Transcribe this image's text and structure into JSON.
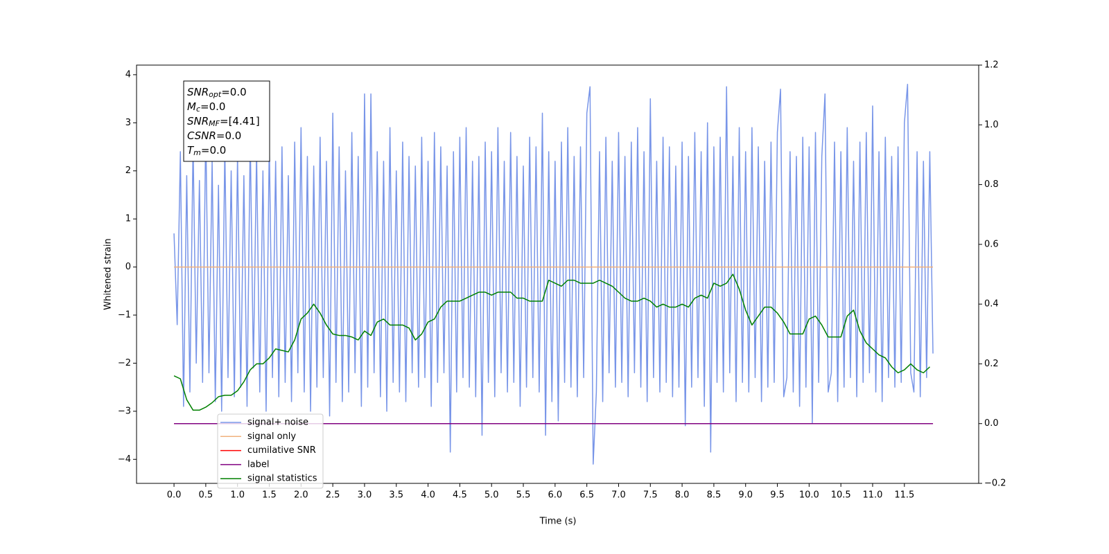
{
  "chart_data": {
    "type": "line",
    "xlabel": "Time (s)",
    "ylabel": "Whitened strain",
    "xlim": [
      -0.59,
      12.67
    ],
    "ylim": [
      -4.5,
      4.2
    ],
    "y2lim": [
      -0.2,
      1.2
    ],
    "xticks": [
      {
        "value": 0,
        "label": "0.0"
      },
      0.5,
      {
        "value": 1,
        "label": "1.0"
      },
      1.5,
      {
        "value": 2,
        "label": "2.0"
      },
      2.5,
      {
        "value": 3,
        "label": "3.0"
      },
      3.5,
      {
        "value": 4,
        "label": "4.0"
      },
      4.5,
      {
        "value": 5,
        "label": "5.0"
      },
      5.5,
      {
        "value": 6,
        "label": "6.0"
      },
      6.5,
      {
        "value": 7,
        "label": "7.0"
      },
      7.5,
      {
        "value": 8,
        "label": "8.0"
      },
      8.5,
      {
        "value": 9,
        "label": "9.0"
      },
      9.5,
      {
        "value": 10,
        "label": "10.0"
      },
      10.5,
      {
        "value": 11,
        "label": "11.0"
      },
      11.5
    ],
    "yticks": [
      {
        "value": -4,
        "label": "−4"
      },
      {
        "value": -3,
        "label": "−3"
      },
      {
        "value": -2,
        "label": "−2"
      },
      {
        "value": -1,
        "label": "−1"
      },
      0,
      1,
      2,
      3,
      4
    ],
    "y2ticks": [
      {
        "value": -0.2,
        "label": "−0.2"
      },
      {
        "value": 0,
        "label": "0.0"
      },
      0.2,
      0.4,
      0.6,
      0.8,
      {
        "value": 1,
        "label": "1.0"
      },
      1.2
    ],
    "annotations": [
      {
        "text": "SNR",
        "sub": "opt",
        "rest": "=0.0"
      },
      {
        "text": "M",
        "sub": "c",
        "rest": "=0.0"
      },
      {
        "text": "SNR",
        "sub": "MF",
        "rest": "=[4.41]"
      },
      {
        "text": "CSNR",
        "rest": "=0.0"
      },
      {
        "text": "T",
        "sub": "m",
        "rest": "=0.0"
      }
    ],
    "series": [
      {
        "name": "signal+ noise",
        "color": "#7895e8",
        "axis": "y",
        "x": [
          0,
          0.05,
          0.1,
          0.15,
          0.2,
          0.25,
          0.3,
          0.35,
          0.4,
          0.45,
          0.5,
          0.55,
          0.6,
          0.65,
          0.7,
          0.75,
          0.8,
          0.85,
          0.9,
          0.95,
          1,
          1.05,
          1.1,
          1.15,
          1.2,
          1.25,
          1.3,
          1.35,
          1.4,
          1.45,
          1.5,
          1.55,
          1.6,
          1.65,
          1.7,
          1.75,
          1.8,
          1.85,
          1.9,
          1.95,
          2,
          2.05,
          2.1,
          2.15,
          2.2,
          2.25,
          2.3,
          2.35,
          2.4,
          2.45,
          2.5,
          2.55,
          2.6,
          2.65,
          2.7,
          2.75,
          2.8,
          2.85,
          2.9,
          2.95,
          3,
          3.05,
          3.1,
          3.15,
          3.2,
          3.25,
          3.3,
          3.35,
          3.4,
          3.45,
          3.5,
          3.55,
          3.6,
          3.65,
          3.7,
          3.75,
          3.8,
          3.85,
          3.9,
          3.95,
          4,
          4.05,
          4.1,
          4.15,
          4.2,
          4.25,
          4.3,
          4.35,
          4.4,
          4.45,
          4.5,
          4.55,
          4.6,
          4.65,
          4.7,
          4.75,
          4.8,
          4.85,
          4.9,
          4.95,
          5,
          5.05,
          5.1,
          5.15,
          5.2,
          5.25,
          5.3,
          5.35,
          5.4,
          5.45,
          5.5,
          5.55,
          5.6,
          5.65,
          5.7,
          5.75,
          5.8,
          5.85,
          5.9,
          5.95,
          6,
          6.05,
          6.1,
          6.15,
          6.2,
          6.25,
          6.3,
          6.35,
          6.4,
          6.45,
          6.5,
          6.55,
          6.6,
          6.65,
          6.7,
          6.75,
          6.8,
          6.85,
          6.9,
          6.95,
          7,
          7.05,
          7.1,
          7.15,
          7.2,
          7.25,
          7.3,
          7.35,
          7.4,
          7.45,
          7.5,
          7.55,
          7.6,
          7.65,
          7.7,
          7.75,
          7.8,
          7.85,
          7.9,
          7.95,
          8,
          8.05,
          8.1,
          8.15,
          8.2,
          8.25,
          8.3,
          8.35,
          8.4,
          8.45,
          8.5,
          8.55,
          8.6,
          8.65,
          8.7,
          8.75,
          8.8,
          8.85,
          8.9,
          8.95,
          9,
          9.05,
          9.1,
          9.15,
          9.2,
          9.25,
          9.3,
          9.35,
          9.4,
          9.45,
          9.5,
          9.55,
          9.6,
          9.65,
          9.7,
          9.75,
          9.8,
          9.85,
          9.9,
          9.95,
          10,
          10.05,
          10.1,
          10.15,
          10.2,
          10.25,
          10.3,
          10.35,
          10.4,
          10.45,
          10.5,
          10.55,
          10.6,
          10.65,
          10.7,
          10.75,
          10.8,
          10.85,
          10.9,
          10.95,
          11,
          11.05,
          11.1,
          11.15,
          11.2,
          11.25,
          11.3,
          11.35,
          11.4,
          11.45,
          11.5,
          11.55,
          11.6,
          11.65,
          11.7,
          11.75,
          11.8,
          11.85,
          11.9,
          11.95
        ],
        "values": [
          0.7,
          -1.2,
          2.4,
          -2.9,
          1.9,
          -2.6,
          2.6,
          -2.0,
          1.8,
          -2.4,
          2.9,
          -2.2,
          2.2,
          -2.8,
          1.7,
          -3.0,
          2.5,
          -2.3,
          2.0,
          -2.7,
          2.3,
          -2.5,
          1.9,
          -2.9,
          2.7,
          -2.1,
          2.4,
          -2.6,
          2.0,
          -3.0,
          2.6,
          -2.3,
          2.2,
          -2.7,
          2.5,
          -2.4,
          1.9,
          -2.8,
          2.6,
          -2.2,
          2.9,
          -2.6,
          2.3,
          -3.0,
          2.1,
          -2.5,
          2.7,
          -2.3,
          2.2,
          -3.1,
          3.2,
          -2.4,
          2.5,
          -2.8,
          2.0,
          -2.6,
          2.8,
          -2.2,
          2.3,
          -2.9,
          3.6,
          -2.5,
          3.6,
          -2.2,
          2.4,
          -2.7,
          2.2,
          -3.0,
          2.9,
          -2.4,
          2.0,
          -2.6,
          2.6,
          -2.8,
          2.3,
          -2.2,
          2.1,
          -2.5,
          2.7,
          -2.3,
          2.2,
          -2.9,
          2.8,
          -2.4,
          2.5,
          -2.2,
          2.1,
          -3.85,
          2.4,
          -2.6,
          2.7,
          -2.3,
          2.9,
          -2.5,
          2.2,
          -2.7,
          2.3,
          -3.5,
          2.6,
          -2.4,
          2.4,
          -2.7,
          2.9,
          -2.2,
          2.2,
          -2.6,
          2.8,
          -2.4,
          2.3,
          -2.9,
          2.1,
          -2.5,
          2.7,
          -2.3,
          2.5,
          -2.6,
          3.2,
          -3.5,
          2.4,
          -2.8,
          2.2,
          -3.2,
          2.6,
          -2.4,
          2.9,
          -2.5,
          2.3,
          -2.7,
          2.5,
          -2.3,
          3.2,
          3.75,
          -4.1,
          -2.6,
          2.4,
          -2.8,
          2.7,
          -2.2,
          2.2,
          -2.5,
          2.8,
          -2.4,
          2.3,
          -2.7,
          2.6,
          -2.2,
          2.9,
          -2.5,
          2.4,
          -2.8,
          3.5,
          -2.3,
          2.2,
          -2.6,
          2.7,
          -2.4,
          2.5,
          -2.7,
          2.1,
          -2.5,
          2.6,
          -3.3,
          2.3,
          -2.5,
          2.8,
          -2.3,
          2.4,
          -2.9,
          3.0,
          -3.85,
          2.5,
          -2.4,
          2.7,
          -2.6,
          3.75,
          -2.2,
          2.3,
          -2.8,
          2.9,
          -2.4,
          2.4,
          -2.6,
          2.9,
          -2.3,
          2.5,
          -2.8,
          2.2,
          -2.5,
          2.6,
          -2.4,
          2.8,
          3.7,
          -2.7,
          -2.3,
          2.4,
          -2.6,
          2.3,
          -2.9,
          2.7,
          -2.5,
          2.5,
          -3.25,
          2.8,
          -2.4,
          2.3,
          3.6,
          -2.6,
          -2.2,
          2.6,
          -2.8,
          2.4,
          -2.5,
          2.9,
          -2.3,
          2.2,
          -2.7,
          2.6,
          -2.4,
          2.8,
          -2.2,
          3.35,
          -2.6,
          2.4,
          -2.8,
          2.7,
          -2.3,
          2.3,
          -2.5,
          2.5,
          -2.4,
          3.0,
          3.8,
          -2.2,
          -2.6,
          2.4,
          -2.7,
          2.2,
          -2.3,
          2.4,
          -1.8
        ]
      },
      {
        "name": "signal only",
        "color": "#f0b07c",
        "axis": "y",
        "x": [
          0,
          11.95
        ],
        "values": [
          0,
          0
        ]
      },
      {
        "name": "cumilative SNR",
        "color": "#ff0000",
        "axis": "y2",
        "x": [
          0,
          11.95
        ],
        "values": [
          0,
          0
        ]
      },
      {
        "name": "label",
        "color": "#800080",
        "axis": "y2",
        "x": [
          0,
          11.95
        ],
        "values": [
          0,
          0
        ]
      },
      {
        "name": "signal statistics",
        "color": "#008000",
        "axis": "y2",
        "x": [
          0,
          0.1,
          0.2,
          0.3,
          0.4,
          0.5,
          0.6,
          0.7,
          0.8,
          0.9,
          1,
          1.1,
          1.2,
          1.3,
          1.4,
          1.5,
          1.6,
          1.7,
          1.8,
          1.9,
          2,
          2.1,
          2.2,
          2.3,
          2.4,
          2.5,
          2.6,
          2.7,
          2.8,
          2.9,
          3,
          3.1,
          3.2,
          3.3,
          3.4,
          3.5,
          3.6,
          3.7,
          3.8,
          3.9,
          4,
          4.1,
          4.2,
          4.3,
          4.4,
          4.5,
          4.6,
          4.7,
          4.8,
          4.9,
          5,
          5.1,
          5.2,
          5.3,
          5.4,
          5.5,
          5.6,
          5.7,
          5.8,
          5.9,
          6,
          6.1,
          6.2,
          6.3,
          6.4,
          6.5,
          6.6,
          6.7,
          6.8,
          6.9,
          7,
          7.1,
          7.2,
          7.3,
          7.4,
          7.5,
          7.6,
          7.7,
          7.8,
          7.9,
          8,
          8.1,
          8.2,
          8.3,
          8.4,
          8.5,
          8.6,
          8.7,
          8.8,
          8.9,
          9,
          9.1,
          9.2,
          9.3,
          9.4,
          9.5,
          9.6,
          9.7,
          9.8,
          9.9,
          10,
          10.1,
          10.2,
          10.3,
          10.4,
          10.5,
          10.6,
          10.7,
          10.8,
          10.9,
          11,
          11.1,
          11.2,
          11.3,
          11.4,
          11.5,
          11.6,
          11.7,
          11.8,
          11.9
        ],
        "values": [
          0.16,
          0.15,
          0.08,
          0.045,
          0.045,
          0.055,
          0.07,
          0.09,
          0.095,
          0.095,
          0.11,
          0.14,
          0.18,
          0.2,
          0.2,
          0.22,
          0.25,
          0.245,
          0.24,
          0.28,
          0.35,
          0.37,
          0.4,
          0.37,
          0.33,
          0.3,
          0.295,
          0.295,
          0.29,
          0.28,
          0.31,
          0.295,
          0.34,
          0.35,
          0.33,
          0.33,
          0.33,
          0.32,
          0.28,
          0.3,
          0.34,
          0.35,
          0.39,
          0.41,
          0.41,
          0.41,
          0.42,
          0.43,
          0.44,
          0.44,
          0.43,
          0.44,
          0.44,
          0.44,
          0.42,
          0.42,
          0.41,
          0.41,
          0.41,
          0.48,
          0.47,
          0.46,
          0.48,
          0.48,
          0.47,
          0.47,
          0.47,
          0.48,
          0.47,
          0.46,
          0.44,
          0.42,
          0.41,
          0.41,
          0.42,
          0.41,
          0.39,
          0.4,
          0.39,
          0.39,
          0.4,
          0.39,
          0.42,
          0.43,
          0.42,
          0.47,
          0.46,
          0.47,
          0.5,
          0.45,
          0.38,
          0.33,
          0.36,
          0.39,
          0.39,
          0.37,
          0.34,
          0.3,
          0.3,
          0.3,
          0.35,
          0.36,
          0.33,
          0.29,
          0.29,
          0.29,
          0.36,
          0.38,
          0.31,
          0.27,
          0.25,
          0.23,
          0.22,
          0.19,
          0.17,
          0.18,
          0.2,
          0.18,
          0.17,
          0.19
        ]
      }
    ]
  }
}
